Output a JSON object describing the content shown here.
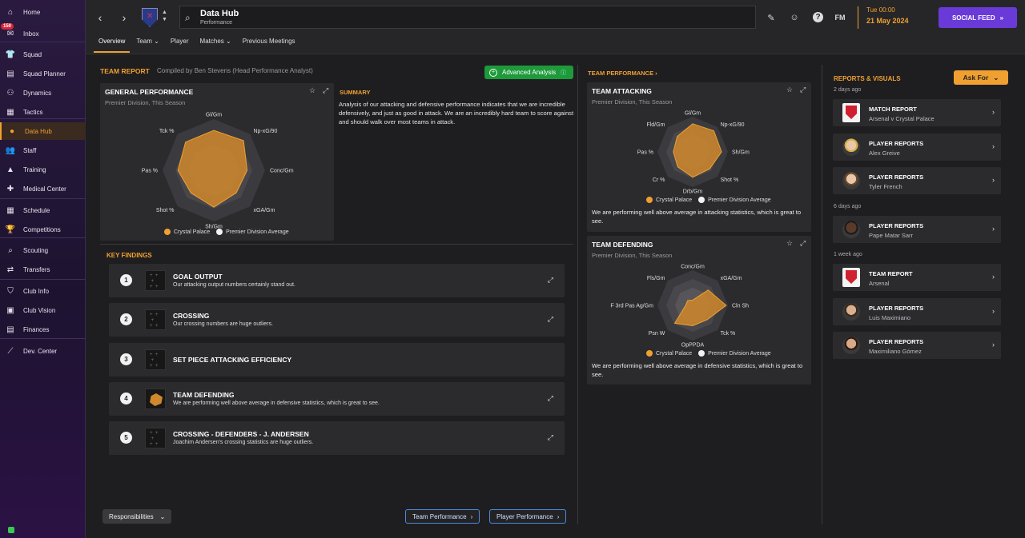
{
  "sidebar": {
    "inbox_badge": "150",
    "items": [
      {
        "label": "Home",
        "icon": "home-icon",
        "glyph": "⌂"
      },
      {
        "label": "Inbox",
        "icon": "inbox-icon",
        "glyph": "✉"
      },
      {
        "label": "Squad",
        "icon": "shirt-icon",
        "glyph": "👕"
      },
      {
        "label": "Squad Planner",
        "icon": "planner-icon",
        "glyph": "▤"
      },
      {
        "label": "Dynamics",
        "icon": "dynamics-icon",
        "glyph": "⚇"
      },
      {
        "label": "Tactics",
        "icon": "tactics-icon",
        "glyph": "▦"
      },
      {
        "label": "Data Hub",
        "icon": "data-hub-icon",
        "glyph": "●"
      },
      {
        "label": "Staff",
        "icon": "staff-icon",
        "glyph": "👥"
      },
      {
        "label": "Training",
        "icon": "training-icon",
        "glyph": "▲"
      },
      {
        "label": "Medical Center",
        "icon": "medical-icon",
        "glyph": "✚"
      },
      {
        "label": "Schedule",
        "icon": "calendar-icon",
        "glyph": "▦"
      },
      {
        "label": "Competitions",
        "icon": "trophy-icon",
        "glyph": "🏆"
      },
      {
        "label": "Scouting",
        "icon": "scouting-icon",
        "glyph": "⌕"
      },
      {
        "label": "Transfers",
        "icon": "transfers-icon",
        "glyph": "⇄"
      },
      {
        "label": "Club Info",
        "icon": "shield-icon",
        "glyph": "⛉"
      },
      {
        "label": "Club Vision",
        "icon": "vision-icon",
        "glyph": "▣"
      },
      {
        "label": "Finances",
        "icon": "finances-icon",
        "glyph": "▤"
      },
      {
        "label": "Dev. Center",
        "icon": "dev-center-icon",
        "glyph": "⟋"
      }
    ]
  },
  "header": {
    "title": "Data Hub",
    "subtitle": "Performance",
    "date_time": "Tue 00:00",
    "date": "21 May 2024",
    "fm_label": "FM",
    "social_feed": "SOCIAL FEED",
    "tabs": [
      {
        "label": "Overview",
        "has_menu": false
      },
      {
        "label": "Team",
        "has_menu": true
      },
      {
        "label": "Player",
        "has_menu": false
      },
      {
        "label": "Matches",
        "has_menu": true
      },
      {
        "label": "Previous Meetings",
        "has_menu": false
      }
    ]
  },
  "team_report": {
    "label": "TEAM REPORT",
    "compiled_by": "Compiled by Ben Stevens (Head Performance Analyst)",
    "advanced_analysis": "Advanced Analysis",
    "general": {
      "title": "GENERAL PERFORMANCE",
      "subtitle": "Premier Division, This Season",
      "axes": [
        "Gl/Gm",
        "Np-xG/90",
        "Conc/Gm",
        "xGA/Gm",
        "Sh/Gm",
        "Shot %",
        "Pas %",
        "Tck %"
      ],
      "team_values": [
        0.78,
        0.82,
        0.65,
        0.62,
        0.72,
        0.63,
        0.7,
        0.78
      ],
      "legend_team": "Crystal Palace",
      "legend_avg": "Premier Division Average"
    },
    "summary_label": "SUMMARY",
    "summary_text": "Analysis of our attacking and defensive performance indicates that we are incredible defensively, and just as good in attack. We are an incredibly hard team to score against and should walk over most teams in attack."
  },
  "key_findings": {
    "label": "KEY FINDINGS",
    "items": [
      {
        "num": "1",
        "title": "GOAL OUTPUT",
        "desc": "Our attacking output numbers certainly stand out."
      },
      {
        "num": "2",
        "title": "CROSSING",
        "desc": "Our crossing numbers are huge outliers."
      },
      {
        "num": "3",
        "title": "SET PIECE ATTACKING EFFICIENCY",
        "desc": ""
      },
      {
        "num": "4",
        "title": "TEAM DEFENDING",
        "desc": "We are performing well above average in defensive statistics, which is great to see."
      },
      {
        "num": "5",
        "title": "CROSSING - DEFENDERS - J. ANDERSEN",
        "desc": "Joachim Andersen's crossing statistics are huge outliers."
      }
    ]
  },
  "footer": {
    "responsibilities": "Responsibilities",
    "team_performance": "Team Performance",
    "player_performance": "Player Performance"
  },
  "team_performance": {
    "label": "TEAM PERFORMANCE",
    "attacking": {
      "title": "TEAM ATTACKING",
      "subtitle": "Premier Division, This Season",
      "axes": [
        "Gl/Gm",
        "Np-xG/90",
        "Sh/Gm",
        "Shot %",
        "Drb/Gm",
        "Cr %",
        "Pas %",
        "Fld/Gm"
      ],
      "team_values": [
        0.8,
        0.85,
        0.82,
        0.68,
        0.72,
        0.6,
        0.55,
        0.62
      ],
      "legend_team": "Crystal Palace",
      "legend_avg": "Premier Division Average",
      "note": "We are performing well above average in attacking statistics, which is great to see."
    },
    "defending": {
      "title": "TEAM DEFENDING",
      "subtitle": "Premier Division, This Season",
      "axes": [
        "Conc/Gm",
        "xGA/Gm",
        "Cln Sh",
        "Tck %",
        "OpPPDA",
        "Psn W",
        "F 3rd Pas Ag/Gm",
        "Fls/Gm"
      ],
      "team_values": [
        0.15,
        0.62,
        0.95,
        0.58,
        0.58,
        0.72,
        0.2,
        0.2
      ],
      "legend_team": "Crystal Palace",
      "legend_avg": "Premier Division Average",
      "note": "We are performing well above average in defensive statistics, which is great to see."
    }
  },
  "reports": {
    "label": "REPORTS & VISUALS",
    "ask_for": "Ask For",
    "groups": [
      {
        "day": "2 days ago",
        "items": [
          {
            "title": "MATCH REPORT",
            "sub": "Arsenal v Crystal Palace",
            "thumb": "crest"
          },
          {
            "title": "PLAYER REPORTS",
            "sub": "Alex Greive",
            "thumb": "f1"
          },
          {
            "title": "PLAYER REPORTS",
            "sub": "Tyler French",
            "thumb": "f2"
          }
        ]
      },
      {
        "day": "6 days ago",
        "items": [
          {
            "title": "PLAYER REPORTS",
            "sub": "Pape Matar Sarr",
            "thumb": "f3"
          }
        ]
      },
      {
        "day": "1 week ago",
        "items": [
          {
            "title": "TEAM REPORT",
            "sub": "Arsenal",
            "thumb": "crest"
          },
          {
            "title": "PLAYER REPORTS",
            "sub": "Luis Maximiano",
            "thumb": "f4"
          },
          {
            "title": "PLAYER REPORTS",
            "sub": "Maximiliano Gómez",
            "thumb": "f5"
          }
        ]
      }
    ]
  },
  "colors": {
    "accent": "#f0a030",
    "team_fill": "#d0882c",
    "purple": "#6a3ad8",
    "green": "#1e9a3a"
  }
}
